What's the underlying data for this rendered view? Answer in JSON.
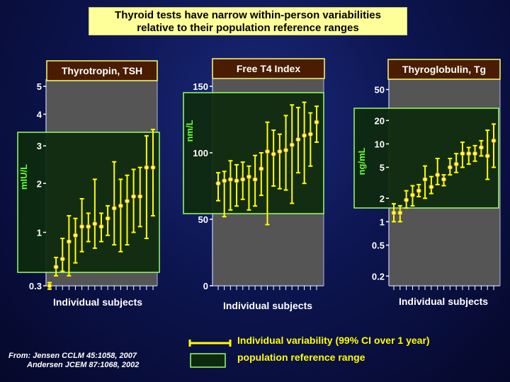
{
  "title": {
    "line1": "Thyroid tests have narrow within-person variabilities",
    "line2": "relative to their population reference ranges"
  },
  "colors": {
    "panel_bg": "#555555",
    "ref_fill": "#0e2a0e",
    "ref_border": "#99ff66",
    "bars": "#ffff00",
    "header_bg": "#4a1c00",
    "header_border": "#ffff66",
    "axis_text": "#ffffff",
    "ylabel": "#66ff33",
    "legend_text": "#ffff00"
  },
  "legend": {
    "variability": "Individual variability (99% CI over 1 year)",
    "reference": "population reference range"
  },
  "source": {
    "line1": "From: Jensen CCLM 45:1058, 2007",
    "line2": "Andersen JCEM 87:1068, 2002"
  },
  "chart_data": [
    {
      "type": "errorbar",
      "title": "Thyrotropin, TSH",
      "ylabel": "mIU/L",
      "xlabel": "Individual subjects",
      "scale": "sqrt",
      "ylim": [
        0.3,
        5
      ],
      "yticks": [
        0.3,
        1,
        2,
        3,
        4,
        5
      ],
      "ytick_labels": [
        "0.3",
        "1",
        "2",
        "3",
        "4",
        "5"
      ],
      "reference_range": [
        0.3,
        3.9
      ],
      "subjects": [
        {
          "mean": 0.3,
          "low": 0.27,
          "high": 0.33
        },
        {
          "mean": 0.5,
          "low": 0.4,
          "high": 0.62
        },
        {
          "mean": 0.6,
          "low": 0.45,
          "high": 0.9
        },
        {
          "mean": 0.85,
          "low": 0.4,
          "high": 1.3
        },
        {
          "mean": 0.95,
          "low": 0.55,
          "high": 1.25
        },
        {
          "mean": 1.1,
          "low": 0.7,
          "high": 1.65
        },
        {
          "mean": 1.1,
          "low": 0.85,
          "high": 1.35
        },
        {
          "mean": 1.15,
          "low": 0.75,
          "high": 2.1
        },
        {
          "mean": 1.1,
          "low": 0.85,
          "high": 1.35
        },
        {
          "mean": 1.25,
          "low": 0.95,
          "high": 1.5
        },
        {
          "mean": 1.45,
          "low": 0.8,
          "high": 2.55
        },
        {
          "mean": 1.5,
          "low": 0.7,
          "high": 2.1
        },
        {
          "mean": 1.6,
          "low": 0.8,
          "high": 2.2
        },
        {
          "mean": 1.7,
          "low": 1.0,
          "high": 2.35
        },
        {
          "mean": 1.7,
          "low": 1.1,
          "high": 2.4
        },
        {
          "mean": 2.4,
          "low": 0.9,
          "high": 3.3
        },
        {
          "mean": 2.4,
          "low": 1.3,
          "high": 3.5
        }
      ]
    },
    {
      "type": "errorbar",
      "title": "Free T4 Index",
      "ylabel": "nm/L",
      "xlabel": "Individual subjects",
      "scale": "linear",
      "ylim": [
        0,
        150
      ],
      "yticks": [
        0,
        50,
        100,
        150
      ],
      "ytick_labels": [
        "0",
        "50",
        "100",
        "150"
      ],
      "reference_range": [
        55,
        148
      ],
      "subjects": [
        {
          "mean": 77,
          "low": 64,
          "high": 85
        },
        {
          "mean": 79,
          "low": 52,
          "high": 86
        },
        {
          "mean": 80,
          "low": 57,
          "high": 94
        },
        {
          "mean": 79,
          "low": 60,
          "high": 91
        },
        {
          "mean": 80,
          "low": 65,
          "high": 93
        },
        {
          "mean": 82,
          "low": 57,
          "high": 90
        },
        {
          "mean": 80,
          "low": 60,
          "high": 98
        },
        {
          "mean": 88,
          "low": 68,
          "high": 100
        },
        {
          "mean": 101,
          "low": 46,
          "high": 123
        },
        {
          "mean": 99,
          "low": 75,
          "high": 117
        },
        {
          "mean": 101,
          "low": 73,
          "high": 114
        },
        {
          "mean": 102,
          "low": 72,
          "high": 128
        },
        {
          "mean": 106,
          "low": 62,
          "high": 136
        },
        {
          "mean": 110,
          "low": 85,
          "high": 134
        },
        {
          "mean": 113,
          "low": 77,
          "high": 138
        },
        {
          "mean": 114,
          "low": 90,
          "high": 130
        },
        {
          "mean": 123,
          "low": 108,
          "high": 135
        }
      ]
    },
    {
      "type": "errorbar",
      "title": "Thyroglobulin, Tg",
      "ylabel": "ng/mL",
      "xlabel": "Individual subjects",
      "scale": "log",
      "ylim": [
        0.15,
        55
      ],
      "yticks": [
        0.2,
        0.5,
        1,
        2,
        5,
        10,
        20,
        50
      ],
      "ytick_labels": [
        "0.2",
        "0.5",
        "1",
        "2",
        "5",
        "10",
        "20",
        "50"
      ],
      "reference_range": [
        1.0,
        25
      ],
      "subjects": [
        {
          "mean": 1.3,
          "low": 1.0,
          "high": 1.7
        },
        {
          "mean": 1.3,
          "low": 1.0,
          "high": 1.6
        },
        {
          "mean": 1.9,
          "low": 1.5,
          "high": 2.5
        },
        {
          "mean": 2.2,
          "low": 1.6,
          "high": 2.9
        },
        {
          "mean": 2.5,
          "low": 2.1,
          "high": 3.0
        },
        {
          "mean": 3.5,
          "low": 2.0,
          "high": 5.2
        },
        {
          "mean": 2.8,
          "low": 2.3,
          "high": 3.8
        },
        {
          "mean": 4.0,
          "low": 3.0,
          "high": 6.5
        },
        {
          "mean": 3.5,
          "low": 2.9,
          "high": 4.0
        },
        {
          "mean": 5.0,
          "low": 4.0,
          "high": 6.5
        },
        {
          "mean": 5.5,
          "low": 4.3,
          "high": 7.5
        },
        {
          "mean": 7.5,
          "low": 5.0,
          "high": 10.5
        },
        {
          "mean": 7.5,
          "low": 5.5,
          "high": 9.0
        },
        {
          "mean": 7.5,
          "low": 6.0,
          "high": 9.5
        },
        {
          "mean": 9.0,
          "low": 7.0,
          "high": 11.0
        },
        {
          "mean": 7.0,
          "low": 3.5,
          "high": 15.0
        },
        {
          "mean": 11.0,
          "low": 5.0,
          "high": 18.0
        }
      ]
    }
  ]
}
